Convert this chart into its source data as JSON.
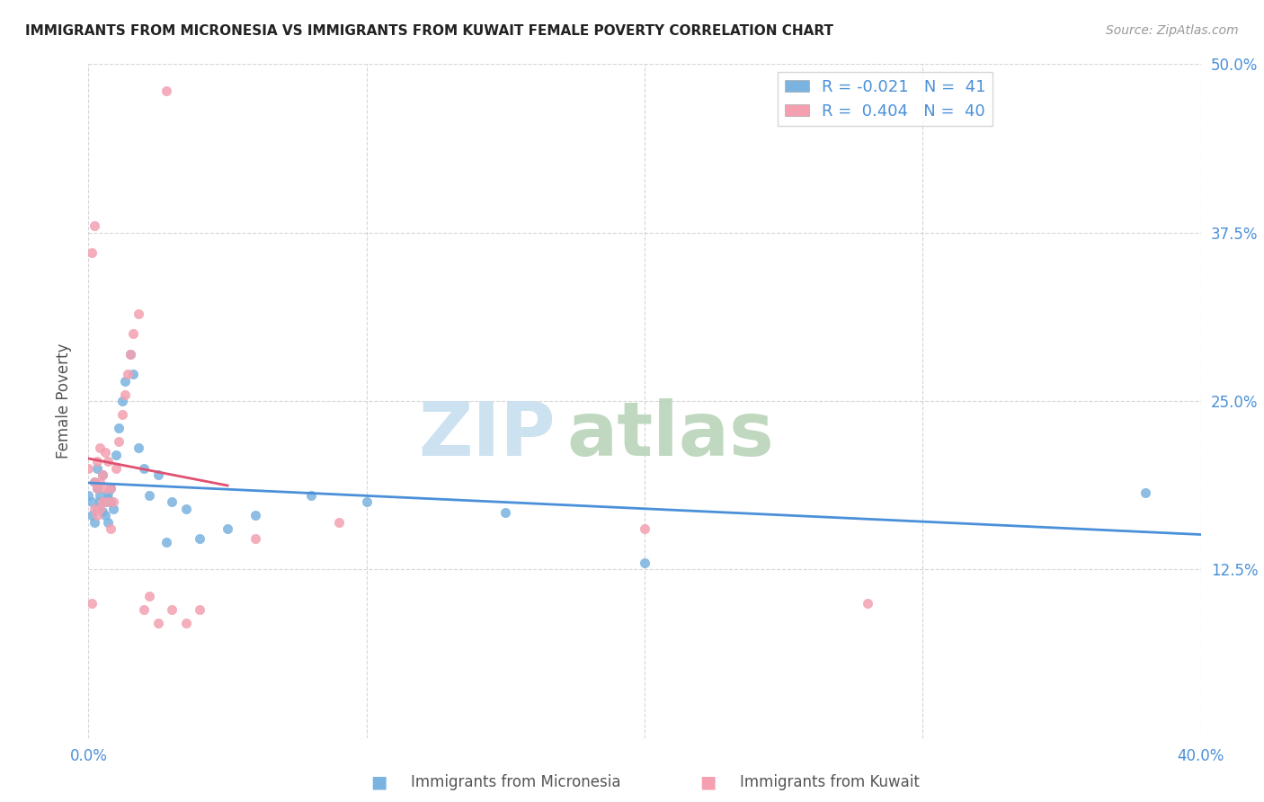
{
  "title": "IMMIGRANTS FROM MICRONESIA VS IMMIGRANTS FROM KUWAIT FEMALE POVERTY CORRELATION CHART",
  "source": "Source: ZipAtlas.com",
  "ylabel": "Female Poverty",
  "xlim": [
    0.0,
    0.4
  ],
  "ylim": [
    0.0,
    0.5
  ],
  "xticks": [
    0.0,
    0.1,
    0.2,
    0.3,
    0.4
  ],
  "yticks": [
    0.0,
    0.125,
    0.25,
    0.375,
    0.5
  ],
  "xtick_labels": [
    "0.0%",
    "",
    "",
    "",
    "40.0%"
  ],
  "ytick_labels": [
    "",
    "12.5%",
    "25.0%",
    "37.5%",
    "50.0%"
  ],
  "micronesia_color": "#7ab3e0",
  "kuwait_color": "#f4a0b0",
  "micronesia_line_color": "#4a90d9",
  "kuwait_line_color": "#e05070",
  "micronesia_R": -0.021,
  "micronesia_N": 41,
  "kuwait_R": 0.404,
  "kuwait_N": 40,
  "legend_label_1": "Immigrants from Micronesia",
  "legend_label_2": "Immigrants from Kuwait",
  "watermark_zip_color": "#c8dff0",
  "watermark_atlas_color": "#b8d4b8",
  "micronesia_x": [
    0.0,
    0.001,
    0.001,
    0.002,
    0.002,
    0.003,
    0.003,
    0.003,
    0.004,
    0.004,
    0.005,
    0.005,
    0.006,
    0.006,
    0.007,
    0.007,
    0.007,
    0.008,
    0.008,
    0.009,
    0.01,
    0.011,
    0.012,
    0.013,
    0.015,
    0.016,
    0.018,
    0.02,
    0.022,
    0.025,
    0.028,
    0.03,
    0.035,
    0.04,
    0.05,
    0.06,
    0.08,
    0.1,
    0.15,
    0.2,
    0.38
  ],
  "micronesia_y": [
    0.18,
    0.175,
    0.165,
    0.19,
    0.16,
    0.2,
    0.185,
    0.17,
    0.175,
    0.18,
    0.195,
    0.168,
    0.165,
    0.175,
    0.182,
    0.16,
    0.178,
    0.185,
    0.175,
    0.17,
    0.21,
    0.23,
    0.25,
    0.265,
    0.285,
    0.27,
    0.215,
    0.2,
    0.18,
    0.195,
    0.145,
    0.175,
    0.17,
    0.148,
    0.155,
    0.165,
    0.18,
    0.175,
    0.167,
    0.13,
    0.182
  ],
  "kuwait_x": [
    0.0,
    0.001,
    0.001,
    0.002,
    0.002,
    0.002,
    0.003,
    0.003,
    0.003,
    0.004,
    0.004,
    0.004,
    0.005,
    0.005,
    0.006,
    0.006,
    0.007,
    0.007,
    0.008,
    0.008,
    0.009,
    0.01,
    0.011,
    0.012,
    0.013,
    0.014,
    0.015,
    0.016,
    0.018,
    0.02,
    0.022,
    0.025,
    0.028,
    0.03,
    0.035,
    0.04,
    0.06,
    0.09,
    0.2,
    0.28
  ],
  "kuwait_y": [
    0.2,
    0.36,
    0.1,
    0.38,
    0.19,
    0.17,
    0.205,
    0.185,
    0.165,
    0.215,
    0.19,
    0.17,
    0.195,
    0.175,
    0.212,
    0.185,
    0.205,
    0.175,
    0.185,
    0.155,
    0.175,
    0.2,
    0.22,
    0.24,
    0.255,
    0.27,
    0.285,
    0.3,
    0.315,
    0.095,
    0.105,
    0.085,
    0.48,
    0.095,
    0.085,
    0.095,
    0.148,
    0.16,
    0.155,
    0.1
  ]
}
